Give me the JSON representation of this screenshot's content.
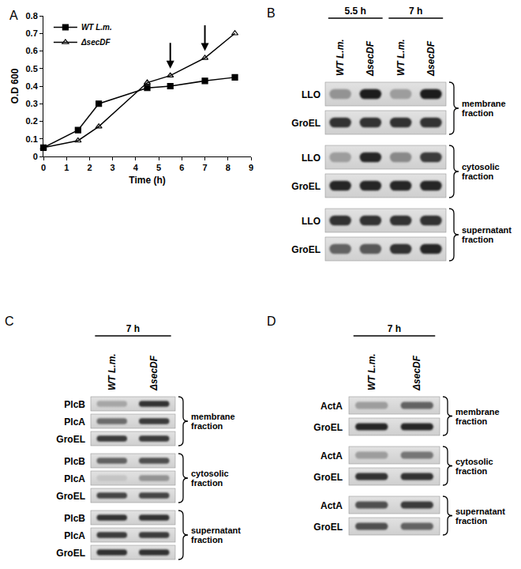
{
  "chart_data": {
    "type": "line",
    "panel": "A",
    "x_label": "Time (h)",
    "y_label": "O.D 600",
    "x": [
      0,
      1.5,
      2.4,
      4.5,
      5.5,
      7,
      8.3
    ],
    "series": [
      {
        "name": "WT L.m.",
        "color": "#000000",
        "marker": "square",
        "values": [
          0.05,
          0.15,
          0.3,
          0.39,
          0.4,
          0.43,
          0.45
        ]
      },
      {
        "name": "ΔsecDF",
        "color": "#000000",
        "marker": "triangle-open",
        "values": [
          0.05,
          0.09,
          0.17,
          0.42,
          0.46,
          0.56,
          0.7
        ]
      }
    ],
    "xlim": [
      0,
      9
    ],
    "xticks": [
      0,
      1,
      2,
      3,
      4,
      5,
      6,
      7,
      8,
      9
    ],
    "ylim": [
      0,
      0.8
    ],
    "yticks": [
      0,
      0.1,
      0.2,
      0.3,
      0.4,
      0.5,
      0.6,
      0.7,
      0.8
    ],
    "grid": false,
    "legend": "upper left",
    "arrows": [
      {
        "x": 5.5,
        "y": 0.5
      },
      {
        "x": 7,
        "y": 0.6
      }
    ]
  },
  "blots": [
    {
      "panel": "B",
      "groups": [
        {
          "label": "5.5 h",
          "lanes": 2
        },
        {
          "label": "7 h",
          "lanes": 2
        }
      ],
      "lanes": [
        "WT L.m.",
        "ΔsecDF",
        "WT L.m.",
        "ΔsecDF"
      ],
      "fractions": [
        {
          "name": "membrane fraction",
          "rows": [
            {
              "protein": "LLO",
              "intensity": [
                0.35,
                0.95,
                0.3,
                0.95
              ]
            },
            {
              "protein": "GroEL",
              "intensity": [
                0.85,
                0.85,
                0.85,
                0.85
              ]
            }
          ]
        },
        {
          "name": "cytosolic fraction",
          "rows": [
            {
              "protein": "LLO",
              "intensity": [
                0.3,
                0.9,
                0.4,
                0.8
              ]
            },
            {
              "protein": "GroEL",
              "intensity": [
                0.9,
                0.9,
                0.9,
                0.9
              ]
            }
          ]
        },
        {
          "name": "supernatant fraction",
          "rows": [
            {
              "protein": "LLO",
              "intensity": [
                0.85,
                0.85,
                0.85,
                0.85
              ]
            },
            {
              "protein": "GroEL",
              "intensity": [
                0.6,
                0.65,
                0.85,
                0.9
              ]
            }
          ]
        }
      ]
    },
    {
      "panel": "C",
      "groups": [
        {
          "label": "7 h",
          "lanes": 2
        }
      ],
      "lanes": [
        "WT L.m.",
        "ΔsecDF"
      ],
      "fractions": [
        {
          "name": "membrane fraction",
          "rows": [
            {
              "protein": "PlcB",
              "intensity": [
                0.25,
                0.85
              ]
            },
            {
              "protein": "PlcA",
              "intensity": [
                0.55,
                0.8
              ]
            },
            {
              "protein": "GroEL",
              "intensity": [
                0.8,
                0.8
              ]
            }
          ]
        },
        {
          "name": "cytosolic fraction",
          "rows": [
            {
              "protein": "PlcB",
              "intensity": [
                0.6,
                0.7
              ]
            },
            {
              "protein": "PlcA",
              "intensity": [
                0.1,
                0.35
              ]
            },
            {
              "protein": "GroEL",
              "intensity": [
                0.75,
                0.75
              ]
            }
          ]
        },
        {
          "name": "supernatant fraction",
          "rows": [
            {
              "protein": "PlcB",
              "intensity": [
                0.85,
                0.85
              ]
            },
            {
              "protein": "PlcA",
              "intensity": [
                0.8,
                0.8
              ]
            },
            {
              "protein": "GroEL",
              "intensity": [
                0.85,
                0.85
              ]
            }
          ]
        }
      ]
    },
    {
      "panel": "D",
      "groups": [
        {
          "label": "7 h",
          "lanes": 2
        }
      ],
      "lanes": [
        "WT L.m.",
        "ΔsecDF"
      ],
      "fractions": [
        {
          "name": "membrane fraction",
          "rows": [
            {
              "protein": "ActA",
              "intensity": [
                0.3,
                0.6
              ]
            },
            {
              "protein": "GroEL",
              "intensity": [
                0.9,
                0.9
              ]
            }
          ]
        },
        {
          "name": "cytosolic fraction",
          "rows": [
            {
              "protein": "ActA",
              "intensity": [
                0.3,
                0.5
              ]
            },
            {
              "protein": "GroEL",
              "intensity": [
                0.85,
                0.85
              ]
            }
          ]
        },
        {
          "name": "supernatant fraction",
          "rows": [
            {
              "protein": "ActA",
              "intensity": [
                0.7,
                0.8
              ]
            },
            {
              "protein": "GroEL",
              "intensity": [
                0.7,
                0.6
              ]
            }
          ]
        }
      ]
    }
  ]
}
